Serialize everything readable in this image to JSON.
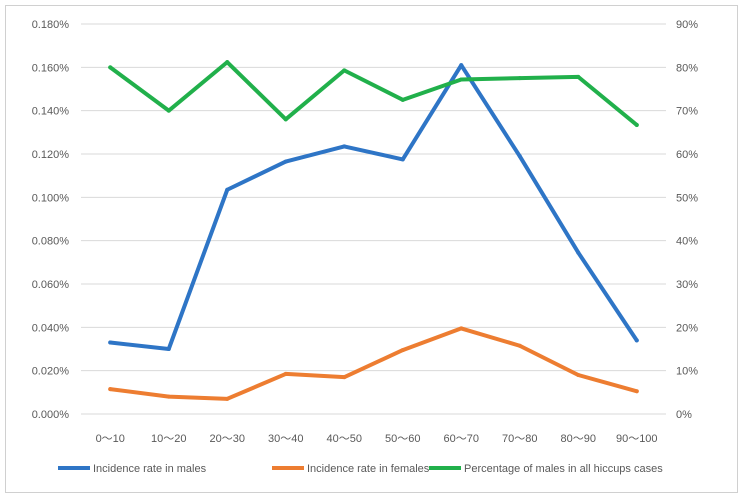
{
  "chart_data": {
    "type": "line",
    "categories": [
      "0～10",
      "10～20",
      "20～30",
      "30～40",
      "40～50",
      "50～60",
      "60～70",
      "70～80",
      "80～90",
      "90～100"
    ],
    "y_left": {
      "ticks": [
        "0.000%",
        "0.020%",
        "0.040%",
        "0.060%",
        "0.080%",
        "0.100%",
        "0.120%",
        "0.140%",
        "0.160%",
        "0.180%"
      ],
      "range": [
        0,
        0.18
      ],
      "unit": "%"
    },
    "y_right": {
      "ticks": [
        "0%",
        "10%",
        "20%",
        "30%",
        "40%",
        "50%",
        "60%",
        "70%",
        "80%",
        "90%"
      ],
      "range": [
        0,
        90
      ],
      "unit": "%"
    },
    "grid": true,
    "legend_position": "bottom",
    "series": [
      {
        "name": "Incidence rate in males",
        "axis": "left",
        "color": "#2E75C6",
        "values": [
          0.033,
          0.03,
          0.1035,
          0.1165,
          0.1235,
          0.1175,
          0.161,
          0.119,
          0.0745,
          0.034
        ]
      },
      {
        "name": "Incidence rate in females",
        "axis": "left",
        "color": "#ED7D31",
        "values": [
          0.0115,
          0.008,
          0.007,
          0.0185,
          0.017,
          0.0295,
          0.0395,
          0.0315,
          0.018,
          0.0105
        ]
      },
      {
        "name": "Percentage of males in all hiccups cases",
        "axis": "right",
        "color": "#21B04B",
        "values": [
          80,
          70,
          81.2,
          68,
          79.3,
          72.5,
          77.2,
          77.5,
          77.8,
          66.7
        ]
      }
    ]
  }
}
